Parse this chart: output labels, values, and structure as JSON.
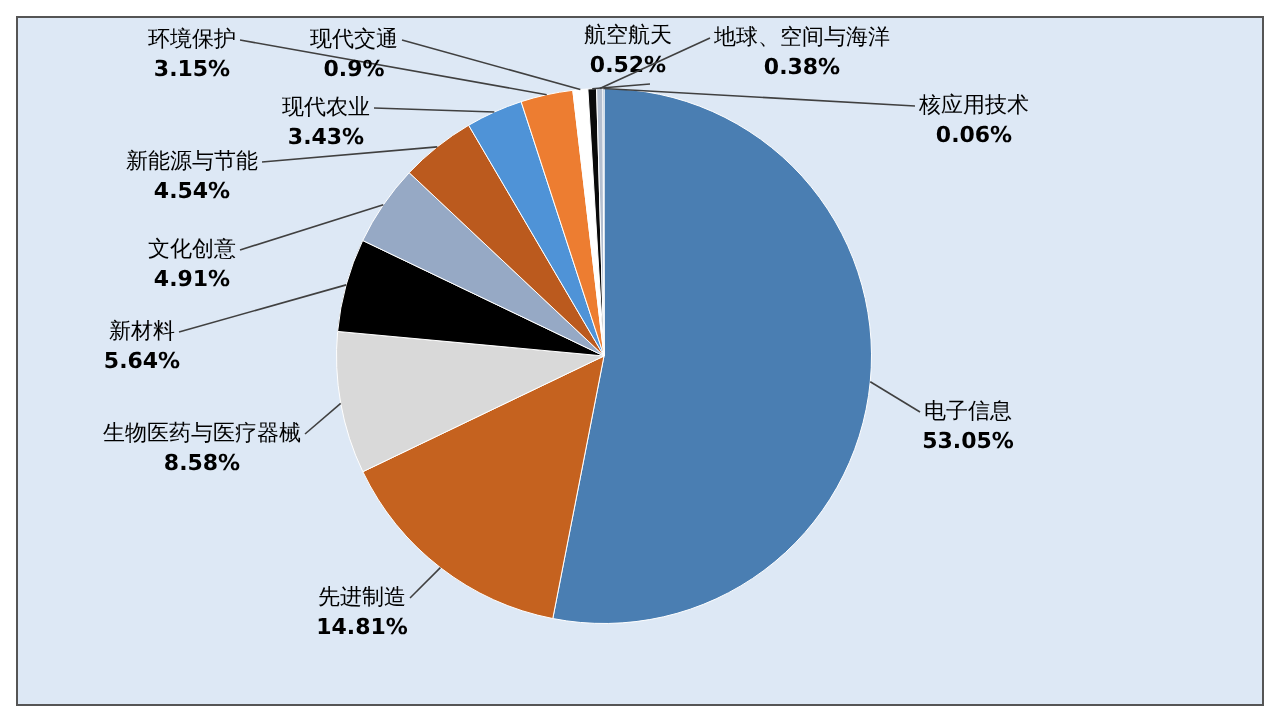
{
  "chart_data": {
    "type": "pie",
    "categories": [
      "电子信息",
      "先进制造",
      "生物医药与医疗器械",
      "新材料",
      "文化创意",
      "新能源与节能",
      "现代农业",
      "环境保护",
      "现代交通",
      "航空航天",
      "地球、空间与海洋",
      "核应用技术"
    ],
    "values": [
      53.05,
      14.81,
      8.58,
      5.64,
      4.91,
      4.54,
      3.43,
      3.15,
      0.9,
      0.52,
      0.38,
      0.06
    ],
    "value_labels": [
      "53.05%",
      "14.81%",
      "8.58%",
      "5.64%",
      "4.91%",
      "4.54%",
      "3.43%",
      "3.15%",
      "0.9%",
      "0.52%",
      "0.38%",
      "0.06%"
    ],
    "colors": [
      "#4a7eb2",
      "#c5621f",
      "#d9d9d9",
      "#000000",
      "#96a9c5",
      "#bb5a1e",
      "#4f93d7",
      "#ed7d31",
      "#ffffff",
      "#0a0a0a",
      "#b4bfd0",
      "#2e5f96"
    ],
    "legend": false
  }
}
